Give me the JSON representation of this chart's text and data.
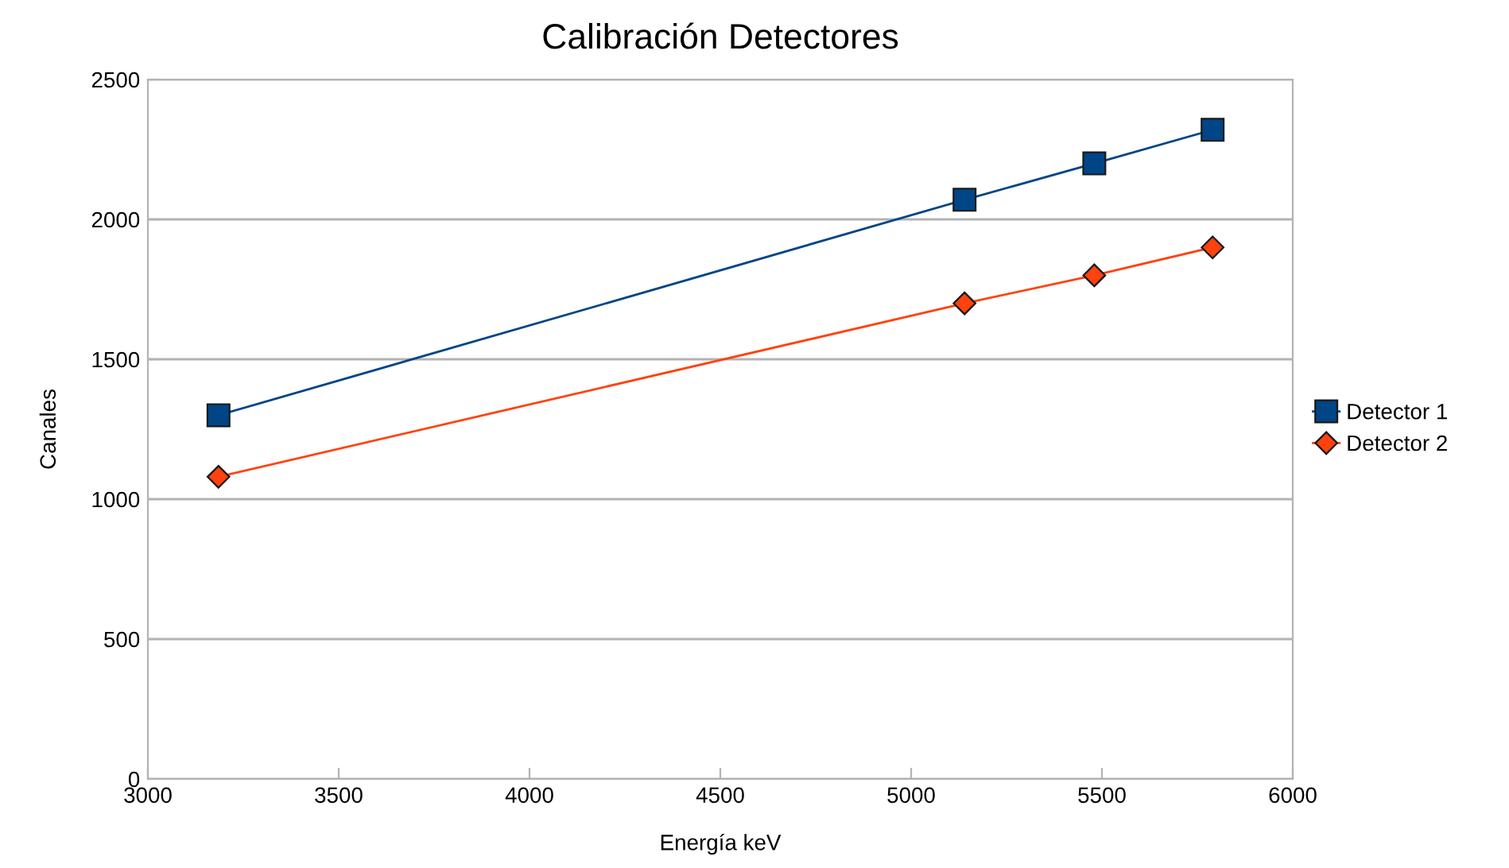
{
  "chart_data": {
    "type": "line",
    "title": "Calibración Detectores",
    "xlabel": "Energía keV",
    "ylabel": "Canales",
    "xlim": [
      3000,
      6000
    ],
    "xticks": [
      3000,
      3500,
      4000,
      4500,
      5000,
      5500,
      6000
    ],
    "ylim": [
      0,
      2500
    ],
    "yticks": [
      0,
      500,
      1000,
      1500,
      2000,
      2500
    ],
    "grid": "y",
    "legend": "right",
    "series": [
      {
        "name": "Detector 1",
        "color": "#004586",
        "marker": "square",
        "x": [
          3185,
          5140,
          5480,
          5790
        ],
        "values": [
          1300,
          2070,
          2200,
          2320
        ]
      },
      {
        "name": "Detector 2",
        "color": "#ff420e",
        "marker": "diamond",
        "x": [
          3185,
          5140,
          5480,
          5790
        ],
        "values": [
          1080,
          1700,
          1800,
          1900
        ]
      }
    ]
  }
}
